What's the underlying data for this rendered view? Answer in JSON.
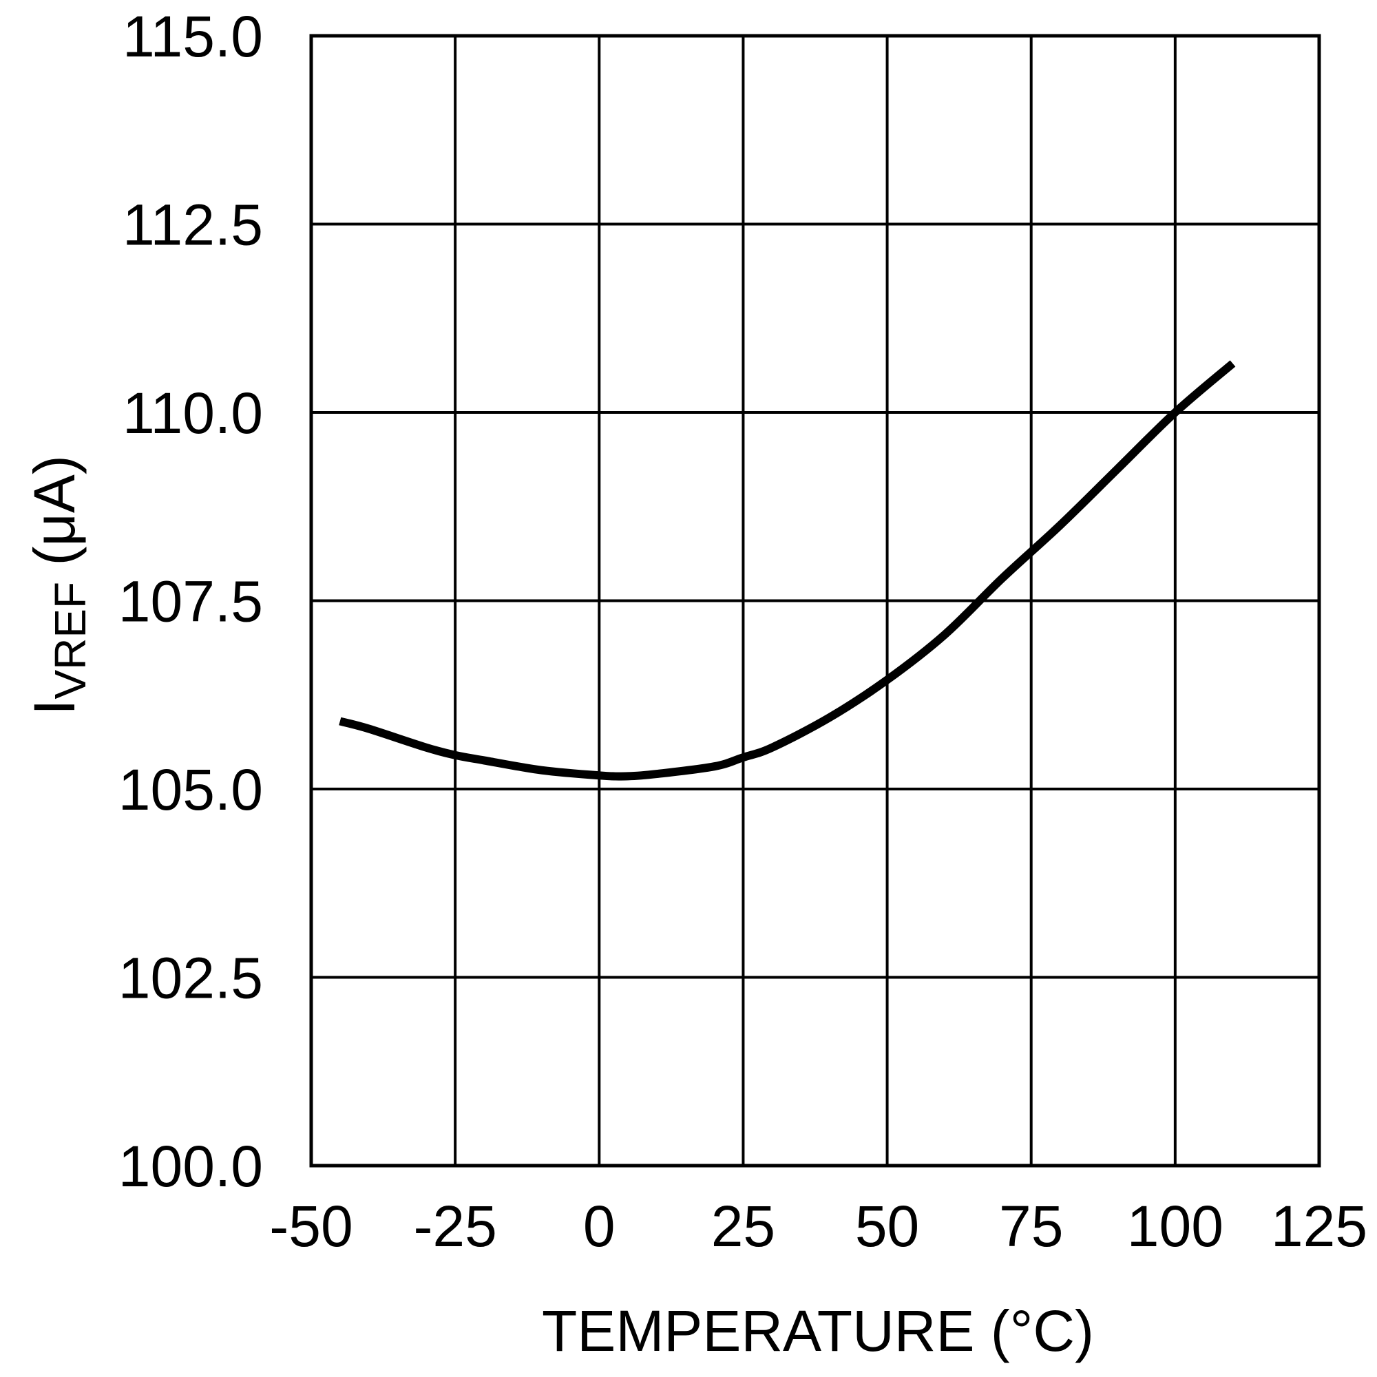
{
  "chart_data": {
    "type": "line",
    "xlabel": "TEMPERATURE (°C)",
    "ylabel_main": "I",
    "ylabel_sub": "VREF",
    "ylabel_unit": " (μA)",
    "xlim": [
      -50,
      125
    ],
    "ylim": [
      100.0,
      115.0
    ],
    "x_ticks": [
      "-50",
      "-25",
      "0",
      "25",
      "50",
      "75",
      "100",
      "125"
    ],
    "y_ticks": [
      "100.0",
      "102.5",
      "105.0",
      "107.5",
      "110.0",
      "112.5",
      "115.0"
    ],
    "grid": true,
    "series": [
      {
        "x": [
          -45,
          -40,
          -30,
          -25,
          -20,
          -10,
          0,
          5,
          10,
          20,
          25,
          30,
          40,
          50,
          60,
          70,
          80,
          90,
          100,
          110
        ],
        "y": [
          105.9,
          105.8,
          105.55,
          105.45,
          105.38,
          105.25,
          105.18,
          105.17,
          105.2,
          105.3,
          105.42,
          105.55,
          105.95,
          106.45,
          107.05,
          107.8,
          108.5,
          109.25,
          110.0,
          110.65
        ],
        "color": "#000000"
      }
    ]
  }
}
